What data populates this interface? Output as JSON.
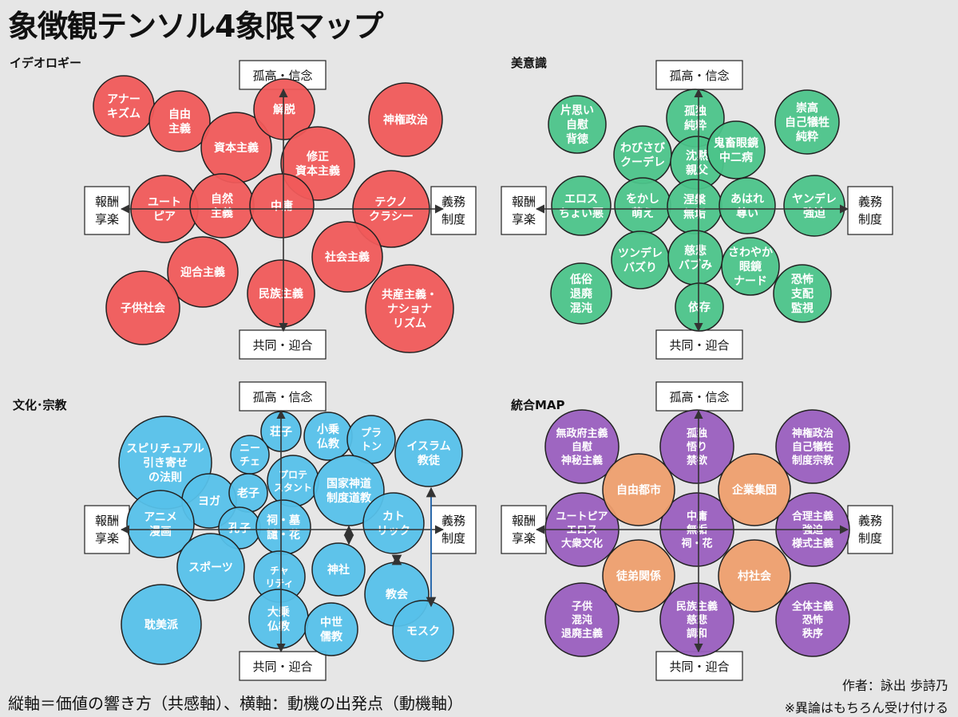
{
  "title": "象徴観テンソル4象限マップ",
  "axes": {
    "top": "孤高・信念",
    "bottom": "共同・迎合",
    "left": [
      "報酬",
      "享楽"
    ],
    "right": [
      "義務",
      "制度"
    ]
  },
  "footer": {
    "axis_note": "縦軸＝価値の響き方（共感軸）、横軸：動機の出発点（動機軸）",
    "author": "作者：詠出 歩詩乃",
    "disclaimer": "※異論はもちろん受け付ける"
  },
  "colors": {
    "ideology": "#f05a5a",
    "aesthetics": "#4cc48a",
    "culture": "#56c1ea",
    "integrated": "#9a5fbf",
    "integrated_accent": "#ee9f6e",
    "outline": "#222222",
    "axis": "#333333"
  },
  "panels": [
    {
      "id": "ideology",
      "label": "イデオロギー",
      "color": "ideology",
      "circles": [
        {
          "text": [
            "アナー",
            "キズム"
          ]
        },
        {
          "text": [
            "自由",
            "主義"
          ]
        },
        {
          "text": [
            "資本主義"
          ]
        },
        {
          "text": [
            "解脱"
          ]
        },
        {
          "text": [
            "神権政治"
          ]
        },
        {
          "text": [
            "修正",
            "資本主義"
          ]
        },
        {
          "text": [
            "ユート",
            "ピア"
          ]
        },
        {
          "text": [
            "自然",
            "主義"
          ]
        },
        {
          "text": [
            "中庸"
          ]
        },
        {
          "text": [
            "テクノ",
            "クラシー"
          ]
        },
        {
          "text": [
            "社会主義"
          ]
        },
        {
          "text": [
            "迎合主義"
          ]
        },
        {
          "text": [
            "子供社会"
          ]
        },
        {
          "text": [
            "民族主義"
          ]
        },
        {
          "text": [
            "共産主義・",
            "ナショナ",
            "リズム"
          ]
        }
      ]
    },
    {
      "id": "aesthetics",
      "label": "美意識",
      "color": "aesthetics",
      "circles": [
        {
          "text": [
            "片思い",
            "自慰",
            "背徳"
          ]
        },
        {
          "text": [
            "孤独",
            "純粋"
          ]
        },
        {
          "text": [
            "崇高",
            "自己犠牲",
            "純粋"
          ]
        },
        {
          "text": [
            "わびさび",
            "クーデレ"
          ]
        },
        {
          "text": [
            "沈黙",
            "親父"
          ]
        },
        {
          "text": [
            "鬼畜眼鏡",
            "中二病"
          ]
        },
        {
          "text": [
            "エロス",
            "ちょい悪"
          ]
        },
        {
          "text": [
            "をかし",
            "萌え"
          ]
        },
        {
          "text": [
            "涅槃",
            "無垢"
          ]
        },
        {
          "text": [
            "あはれ",
            "尊い"
          ]
        },
        {
          "text": [
            "ヤンデレ",
            "強迫"
          ]
        },
        {
          "text": [
            "ツンデレ",
            "バズり"
          ]
        },
        {
          "text": [
            "慈悲",
            "バブみ"
          ]
        },
        {
          "text": [
            "さわやか",
            "眼鏡",
            "ナード"
          ]
        },
        {
          "text": [
            "低俗",
            "退廃",
            "混沌"
          ]
        },
        {
          "text": [
            "恐怖",
            "支配",
            "監視"
          ]
        },
        {
          "text": [
            "依存"
          ]
        }
      ]
    },
    {
      "id": "culture",
      "label": "文化･宗教",
      "color": "culture",
      "circles": [
        {
          "text": [
            "スピリチュアル",
            "引き寄せ",
            "の法則"
          ]
        },
        {
          "text": [
            "荘子"
          ]
        },
        {
          "text": [
            "小乗",
            "仏教"
          ]
        },
        {
          "text": [
            "プラ",
            "トン"
          ]
        },
        {
          "text": [
            "イスラム",
            "教徒"
          ]
        },
        {
          "text": [
            "ニー",
            "チェ"
          ]
        },
        {
          "text": [
            "プロテ",
            "スタント"
          ]
        },
        {
          "text": [
            "国家神道",
            "制度道教"
          ]
        },
        {
          "text": [
            "ヨガ"
          ]
        },
        {
          "text": [
            "老子"
          ]
        },
        {
          "text": [
            "アニメ",
            "漫画"
          ]
        },
        {
          "text": [
            "孔子"
          ]
        },
        {
          "text": [
            "祠・墓",
            "譴・花"
          ]
        },
        {
          "text": [
            "カト",
            "リック"
          ]
        },
        {
          "text": [
            "スポーツ"
          ]
        },
        {
          "text": [
            "チャ",
            "リティ"
          ]
        },
        {
          "text": [
            "神社"
          ]
        },
        {
          "text": [
            "教会"
          ]
        },
        {
          "text": [
            "耽美派"
          ]
        },
        {
          "text": [
            "大乗",
            "仏教"
          ]
        },
        {
          "text": [
            "中世",
            "儒教"
          ]
        },
        {
          "text": [
            "モスク"
          ]
        }
      ]
    },
    {
      "id": "integrated",
      "label": "統合MAP",
      "color": "integrated",
      "circles": [
        {
          "text": [
            "無政府主義",
            "自慰",
            "神秘主義"
          ],
          "tone": "main"
        },
        {
          "text": [
            "孤独",
            "悟り",
            "禁欲"
          ],
          "tone": "main"
        },
        {
          "text": [
            "神権政治",
            "自己犠牲",
            "制度宗教"
          ],
          "tone": "main"
        },
        {
          "text": [
            "ユートピア",
            "エロス",
            "大衆文化"
          ],
          "tone": "main"
        },
        {
          "text": [
            "中庸",
            "無垢",
            "祠・花"
          ],
          "tone": "main"
        },
        {
          "text": [
            "合理主義",
            "強迫",
            "様式主義"
          ],
          "tone": "main"
        },
        {
          "text": [
            "子供",
            "混沌",
            "退廃主義"
          ],
          "tone": "main"
        },
        {
          "text": [
            "民族主義",
            "慈悲",
            "調和"
          ],
          "tone": "main"
        },
        {
          "text": [
            "全体主義",
            "恐怖",
            "秩序"
          ],
          "tone": "main"
        },
        {
          "text": [
            "自由都市"
          ],
          "tone": "accent"
        },
        {
          "text": [
            "企業集団"
          ],
          "tone": "accent"
        },
        {
          "text": [
            "徒弟関係"
          ],
          "tone": "accent"
        },
        {
          "text": [
            "村社会"
          ],
          "tone": "accent"
        }
      ]
    }
  ]
}
